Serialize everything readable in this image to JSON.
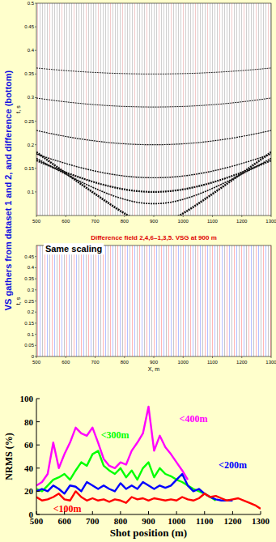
{
  "side_title": "VS gathers from dataset 1 and 2, and difference (bottom)",
  "chart_data": [
    {
      "type": "seismic",
      "ylabel": "t, s",
      "xlim": [
        500,
        1300
      ],
      "xticks": [
        500,
        600,
        700,
        800,
        900,
        1000,
        1100,
        1200,
        1300
      ],
      "ylim": [
        0.05,
        0.5
      ],
      "yticks": [
        0.1,
        0.15,
        0.2,
        0.25,
        0.3,
        0.35,
        0.4,
        0.45,
        0.5
      ]
    },
    {
      "type": "seismic",
      "title": "Difference field 2,4,6–1,3,5. VSG at 900 m",
      "xlabel": "X, m",
      "ylabel": "t, s",
      "xlim": [
        500,
        1300
      ],
      "xticks": [
        500,
        600,
        700,
        800,
        900,
        1000,
        1100,
        1200,
        1300
      ],
      "ylim": [
        0,
        0.5
      ],
      "yticks": [
        0,
        0.05,
        0.1,
        0.15,
        0.2,
        0.25,
        0.3,
        0.35,
        0.4,
        0.45
      ],
      "annotations": [
        {
          "text": "Same scaling",
          "x": 530,
          "y": 0.47
        }
      ]
    },
    {
      "type": "line",
      "xlabel": "Shot position (m)",
      "ylabel": "NRMS (%)",
      "grid": false,
      "xlim": [
        500,
        1300
      ],
      "xticks": [
        500,
        600,
        700,
        800,
        900,
        1000,
        1100,
        1200,
        1300
      ],
      "ylim": [
        0,
        100
      ],
      "yticks": [
        0,
        20,
        40,
        60,
        80,
        100
      ],
      "x": [
        500,
        520,
        540,
        560,
        580,
        600,
        620,
        640,
        660,
        680,
        700,
        720,
        740,
        760,
        780,
        800,
        820,
        840,
        860,
        880,
        900,
        920,
        940,
        960,
        980,
        1000,
        1020,
        1040,
        1060,
        1080,
        1100,
        1120,
        1140,
        1160,
        1180,
        1200,
        1220,
        1240,
        1260,
        1280,
        1300
      ],
      "series": [
        {
          "color": "#ff00ff",
          "values": [
            25,
            28,
            35,
            62,
            40,
            52,
            62,
            75,
            70,
            68,
            75,
            62,
            48,
            42,
            40,
            45,
            43,
            55,
            62,
            70,
            93,
            55,
            68,
            58,
            52,
            45,
            38,
            30,
            null,
            null,
            null,
            null,
            null,
            null,
            null,
            null,
            null,
            null,
            null,
            null,
            null
          ]
        },
        {
          "color": "#00ff00",
          "values": [
            22,
            20,
            25,
            30,
            32,
            35,
            30,
            38,
            45,
            42,
            52,
            55,
            42,
            38,
            35,
            40,
            32,
            38,
            30,
            40,
            45,
            32,
            40,
            35,
            33,
            30,
            28,
            25,
            22,
            20,
            18,
            15,
            12,
            null,
            null,
            null,
            null,
            null,
            null,
            null,
            null
          ]
        },
        {
          "color": "#0000ff",
          "values": [
            20,
            22,
            20,
            25,
            22,
            18,
            25,
            24,
            20,
            28,
            25,
            22,
            25,
            22,
            20,
            27,
            22,
            25,
            22,
            28,
            25,
            22,
            25,
            23,
            25,
            30,
            35,
            25,
            20,
            22,
            18,
            15,
            13,
            12,
            12,
            12,
            null,
            null,
            null,
            null,
            null
          ]
        },
        {
          "color": "#ff0000",
          "values": [
            15,
            12,
            13,
            15,
            18,
            13,
            12,
            20,
            15,
            12,
            14,
            12,
            13,
            11,
            13,
            12,
            10,
            15,
            13,
            14,
            12,
            14,
            13,
            12,
            13,
            12,
            15,
            13,
            12,
            14,
            18,
            15,
            16,
            14,
            12,
            13,
            14,
            12,
            10,
            8,
            5
          ]
        }
      ],
      "annotations": [
        {
          "text": "<400m",
          "x": 1010,
          "y": 80,
          "color": "#ff00ff"
        },
        {
          "text": "<300m",
          "x": 730,
          "y": 66,
          "color": "#00ff00"
        },
        {
          "text": "<200m",
          "x": 1150,
          "y": 40,
          "color": "#0000ff"
        },
        {
          "text": "<100m",
          "x": 560,
          "y": 2,
          "color": "#ff0000"
        }
      ]
    }
  ]
}
